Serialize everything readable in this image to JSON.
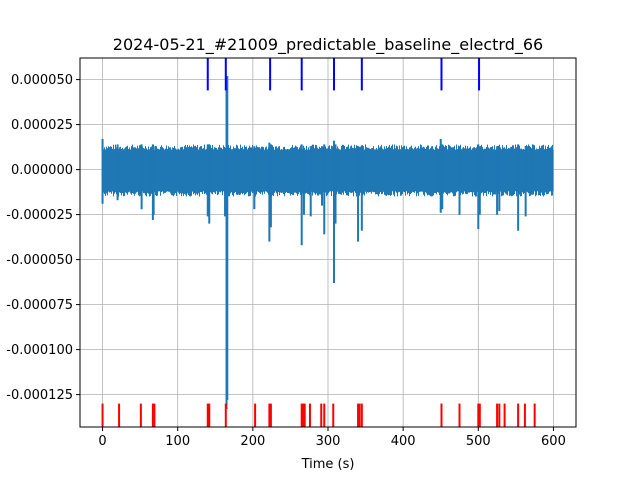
{
  "chart_data": {
    "type": "line",
    "title": "2024-05-21_#21009_predictable_baseline_electrd_66",
    "xlabel": "Time (s)",
    "ylabel": "",
    "xlim": [
      -30,
      630
    ],
    "ylim": [
      -0.000143,
      6.2e-05
    ],
    "grid": true,
    "x_ticks": [
      0,
      100,
      200,
      300,
      400,
      500,
      600
    ],
    "x_tick_labels": [
      "0",
      "100",
      "200",
      "300",
      "400",
      "500",
      "600"
    ],
    "y_ticks": [
      5e-05,
      2.5e-05,
      0.0,
      -2.5e-05,
      -5e-05,
      -7.5e-05,
      -0.0001,
      -0.000125
    ],
    "y_tick_labels": [
      "0.000050",
      "0.000025",
      "0.000000",
      "-0.000025",
      "-0.000050",
      "-0.000075",
      "-0.000100",
      "-0.000125"
    ],
    "series": [
      {
        "color": "#1f77b4",
        "style": "line",
        "baseline_band": [
          -1.2e-05,
          1.1e-05
        ],
        "extent": [
          0,
          600
        ],
        "transients": [
          {
            "x": 0,
            "min": -1.9e-05,
            "max": 1.7e-05
          },
          {
            "x": 20,
            "min": -1.7e-05,
            "max": 1.4e-05
          },
          {
            "x": 52,
            "min": -2.2e-05,
            "max": 1.4e-05
          },
          {
            "x": 67,
            "min": -2.8e-05,
            "max": 1.4e-05
          },
          {
            "x": 68,
            "min": -2.5e-05,
            "max": 1.3e-05
          },
          {
            "x": 140,
            "min": -2.6e-05,
            "max": 1.4e-05
          },
          {
            "x": 142,
            "min": -3e-05,
            "max": 1.4e-05
          },
          {
            "x": 163,
            "min": -2.6e-05,
            "max": 1.2e-05
          },
          {
            "x": 165,
            "min": -0.000133,
            "max": 4.9e-05
          },
          {
            "x": 166,
            "min": -0.000128,
            "max": 5.2e-05
          },
          {
            "x": 202,
            "min": -2.2e-05,
            "max": 1.3e-05
          },
          {
            "x": 222,
            "min": -4e-05,
            "max": 1.5e-05
          },
          {
            "x": 224,
            "min": -3.2e-05,
            "max": 1.4e-05
          },
          {
            "x": 265,
            "min": -4.2e-05,
            "max": 1.4e-05
          },
          {
            "x": 268,
            "min": -2.5e-05,
            "max": 1.2e-05
          },
          {
            "x": 277,
            "min": -2.6e-05,
            "max": 1.3e-05
          },
          {
            "x": 292,
            "min": -2e-05,
            "max": 1.3e-05
          },
          {
            "x": 295,
            "min": -3.6e-05,
            "max": 1.4e-05
          },
          {
            "x": 308,
            "min": -6.3e-05,
            "max": 1.6e-05
          },
          {
            "x": 310,
            "min": -3e-05,
            "max": 1.4e-05
          },
          {
            "x": 340,
            "min": -4e-05,
            "max": 1.3e-05
          },
          {
            "x": 345,
            "min": -3.4e-05,
            "max": 1.3e-05
          },
          {
            "x": 450,
            "min": -2.4e-05,
            "max": 1.7e-05
          },
          {
            "x": 452,
            "min": -2.2e-05,
            "max": 1.4e-05
          },
          {
            "x": 475,
            "min": -2.5e-05,
            "max": 1.3e-05
          },
          {
            "x": 500,
            "min": -3.3e-05,
            "max": 1.4e-05
          },
          {
            "x": 502,
            "min": -2.5e-05,
            "max": 1.3e-05
          },
          {
            "x": 525,
            "min": -2.5e-05,
            "max": 1.3e-05
          },
          {
            "x": 528,
            "min": -2.3e-05,
            "max": 1.2e-05
          },
          {
            "x": 553,
            "min": -3.4e-05,
            "max": 1.4e-05
          },
          {
            "x": 563,
            "min": -2.6e-05,
            "max": 1.3e-05
          },
          {
            "x": 572,
            "min": -1.4e-05,
            "max": 1.2e-05
          },
          {
            "x": 598,
            "min": -1.4e-05,
            "max": 1.3e-05
          }
        ]
      },
      {
        "color": "#0000ff",
        "style": "event_markers",
        "y_range": [
          4.4e-05,
          6.2e-05
        ],
        "x": [
          140,
          164,
          223,
          265,
          308,
          345,
          451,
          501
        ]
      },
      {
        "color": "#ff0000",
        "style": "event_markers",
        "y_range": [
          -0.000143,
          -0.00013
        ],
        "x": [
          0,
          22,
          51,
          67,
          69,
          140,
          142,
          164,
          203,
          222,
          224,
          265,
          267,
          269,
          276,
          291,
          295,
          307,
          340,
          342,
          345,
          451,
          475,
          500,
          502,
          525,
          528,
          535,
          553,
          562,
          575
        ]
      }
    ]
  }
}
